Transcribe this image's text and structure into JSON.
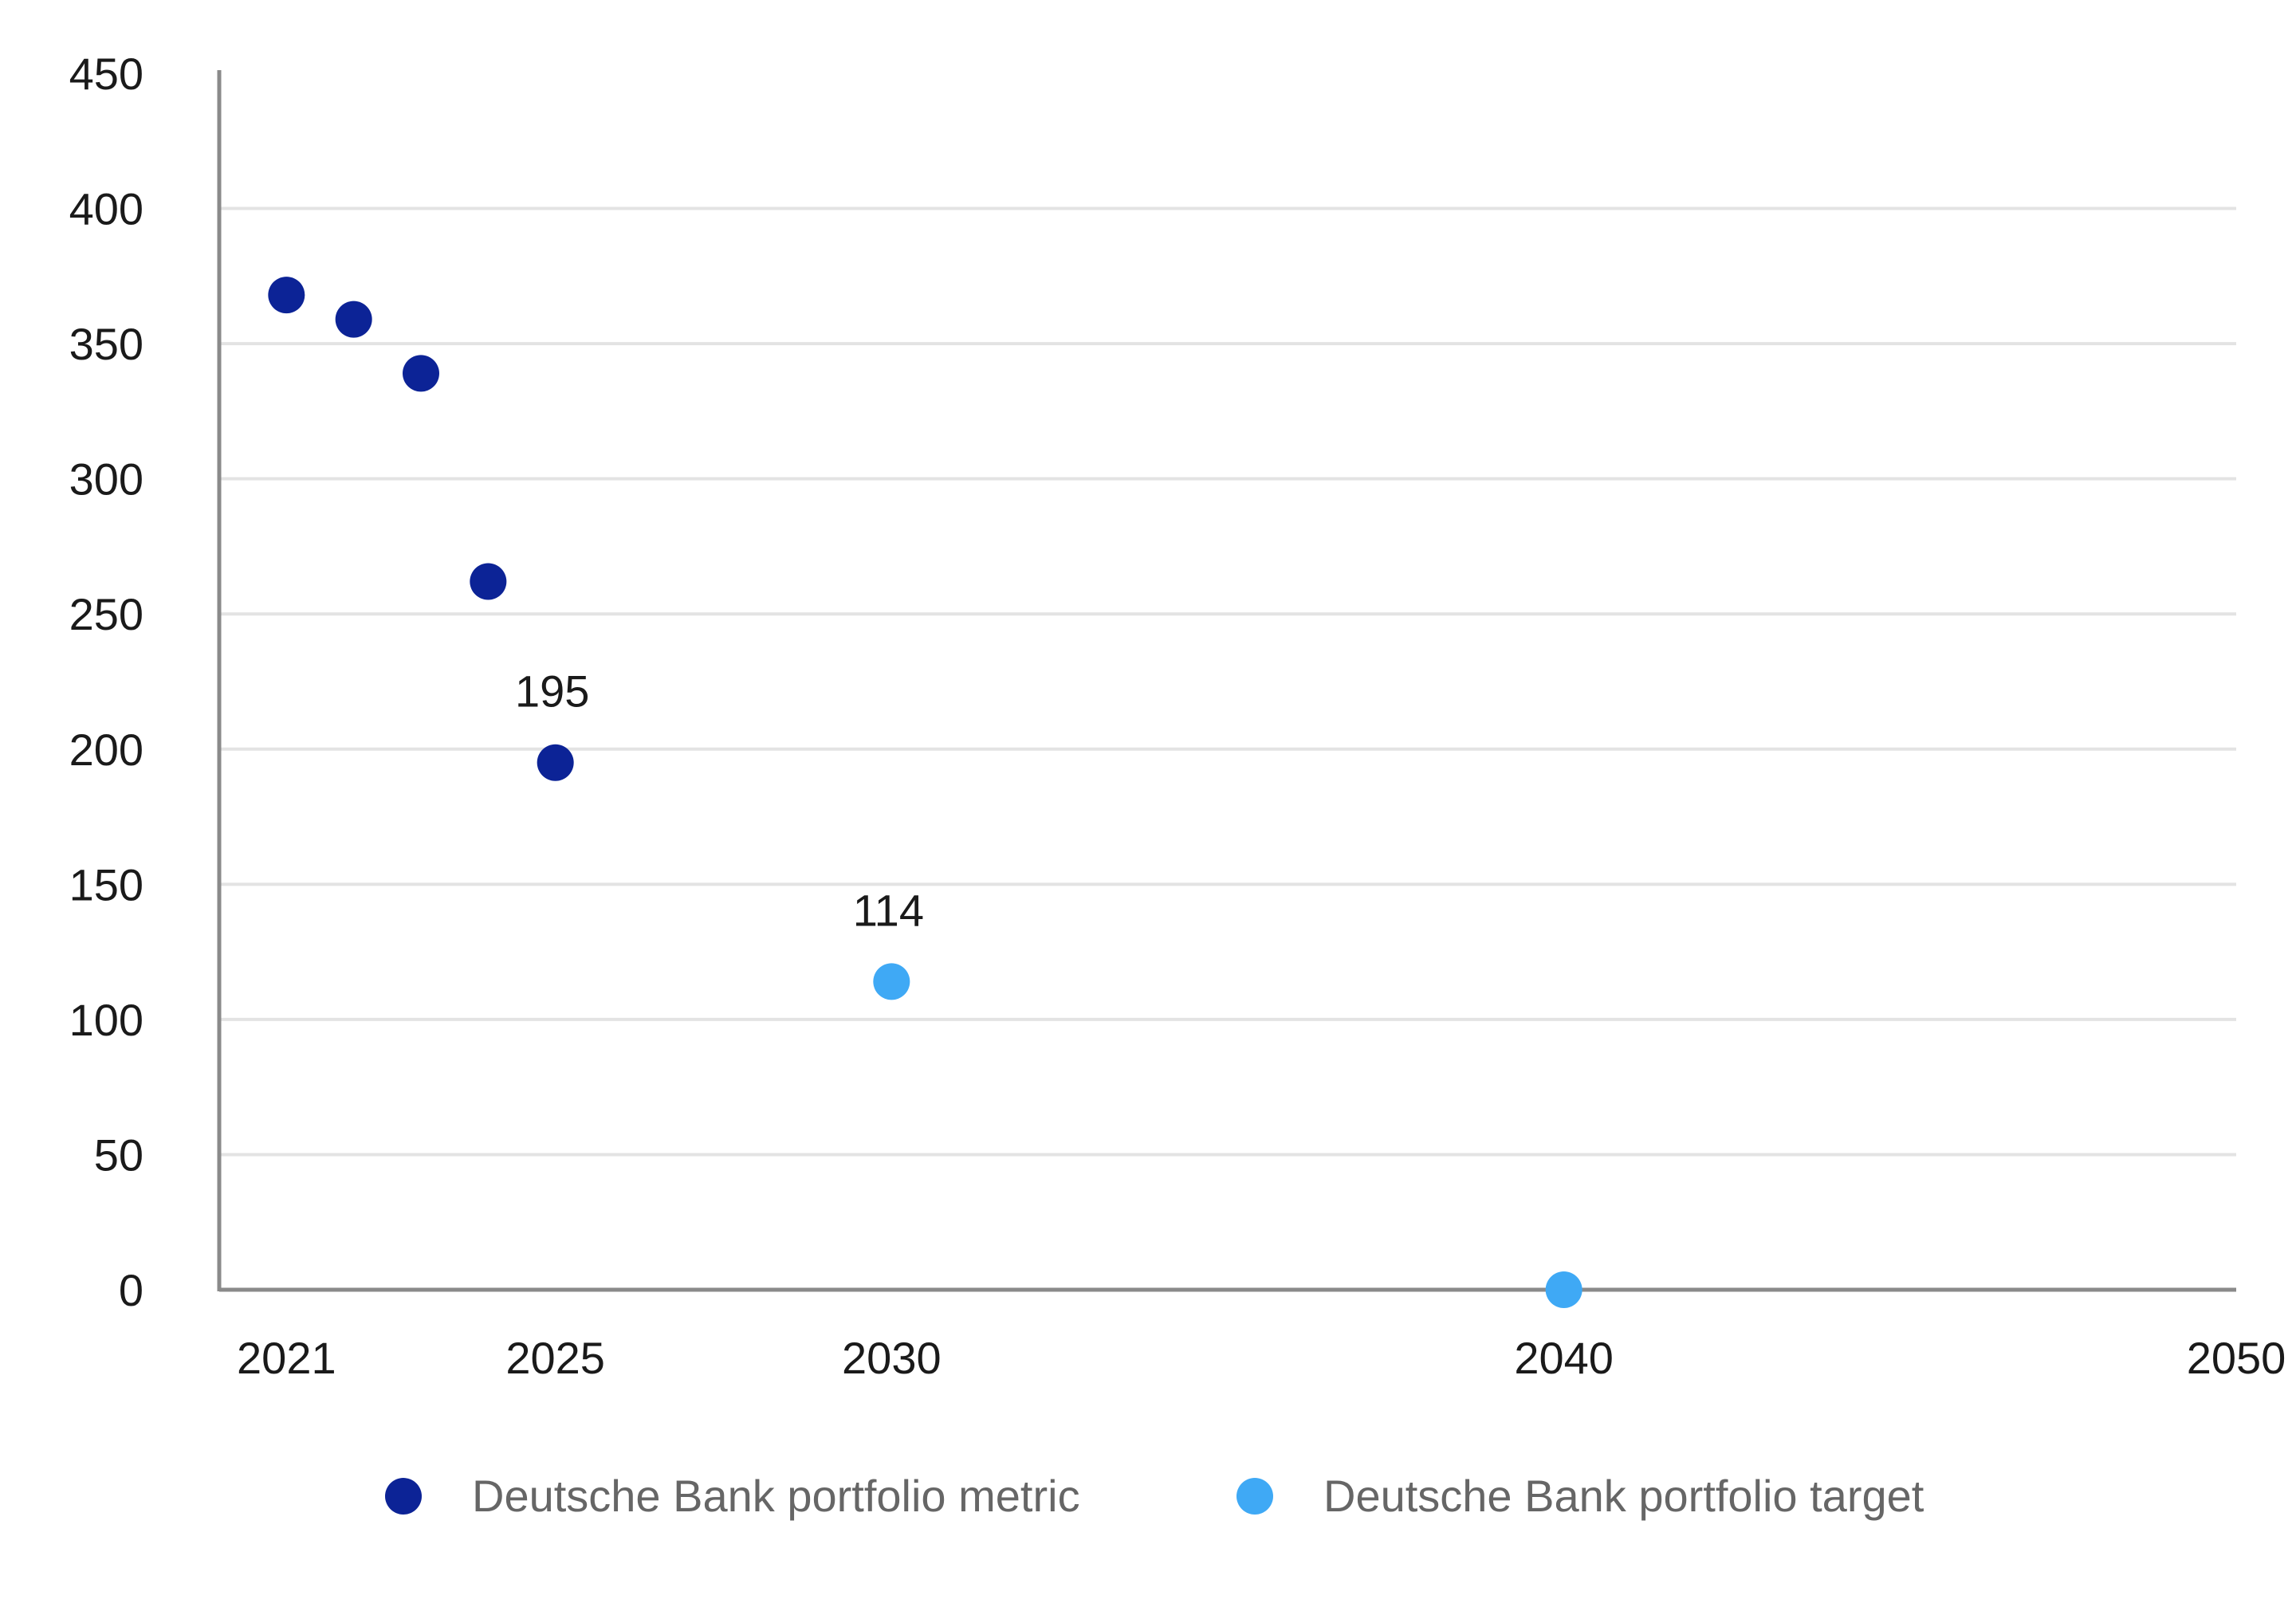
{
  "chart_data": {
    "type": "scatter",
    "title": "",
    "xlabel": "",
    "ylabel": "",
    "xlim": [
      2020.0,
      2050
    ],
    "ylim": [
      0,
      450
    ],
    "x_ticks": [
      2021,
      2025,
      2030,
      2040,
      2050
    ],
    "y_ticks": [
      0,
      50,
      100,
      150,
      200,
      250,
      300,
      350,
      400,
      450
    ],
    "grid": "horizontal",
    "legend_position": "bottom",
    "series": [
      {
        "name": "Deutsche Bank portfolio metric",
        "color": "#0c2396",
        "points": [
          {
            "x": 2021,
            "y": 368
          },
          {
            "x": 2022,
            "y": 359
          },
          {
            "x": 2023,
            "y": 339
          },
          {
            "x": 2024,
            "y": 262
          },
          {
            "x": 2025,
            "y": 195,
            "label": "195"
          }
        ]
      },
      {
        "name": "Deutsche Bank portfolio target",
        "color": "#3fa9f5",
        "points": [
          {
            "x": 2030,
            "y": 114,
            "label": "114"
          },
          {
            "x": 2040,
            "y": 0
          }
        ]
      }
    ]
  }
}
